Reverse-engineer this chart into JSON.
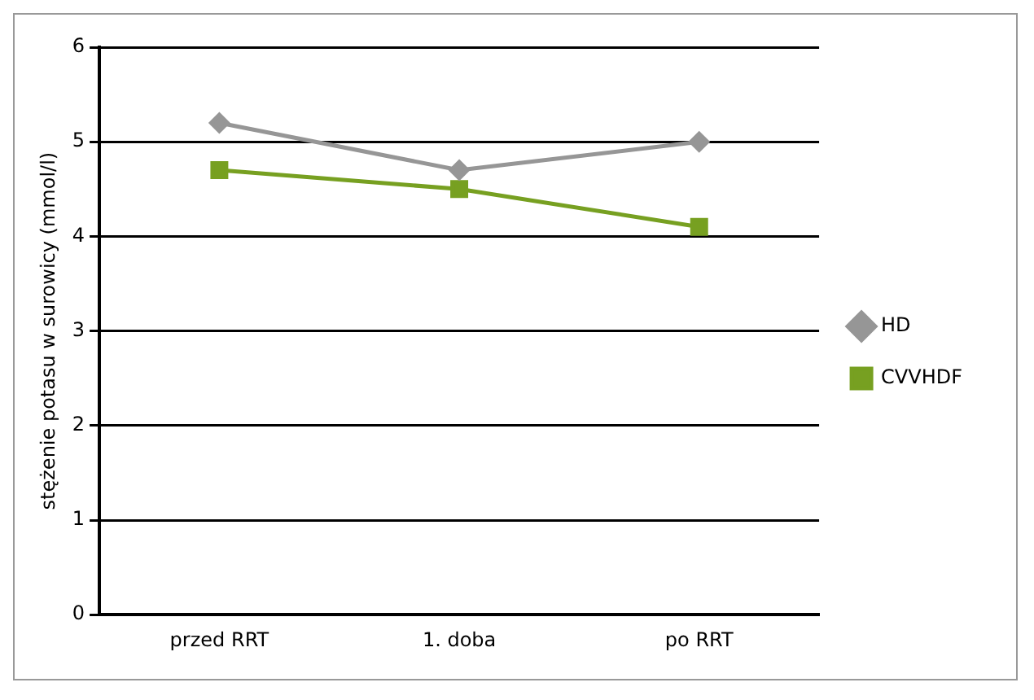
{
  "chart_data": {
    "type": "line",
    "ylabel": "stężenie potasu w surowicy (mmol/l)",
    "categories": [
      "przed RRT",
      "1. doba",
      "po RRT"
    ],
    "series": [
      {
        "name": "HD",
        "color": "#969696",
        "marker": "diamond",
        "values": [
          5.2,
          4.7,
          5.0
        ]
      },
      {
        "name": "CVVHDF",
        "color": "#77a021",
        "marker": "square",
        "values": [
          4.7,
          4.5,
          4.1
        ]
      }
    ],
    "ylim": [
      0,
      6
    ],
    "yticks": [
      0,
      1,
      2,
      3,
      4,
      5,
      6
    ],
    "grid": "y",
    "legend": "right"
  }
}
